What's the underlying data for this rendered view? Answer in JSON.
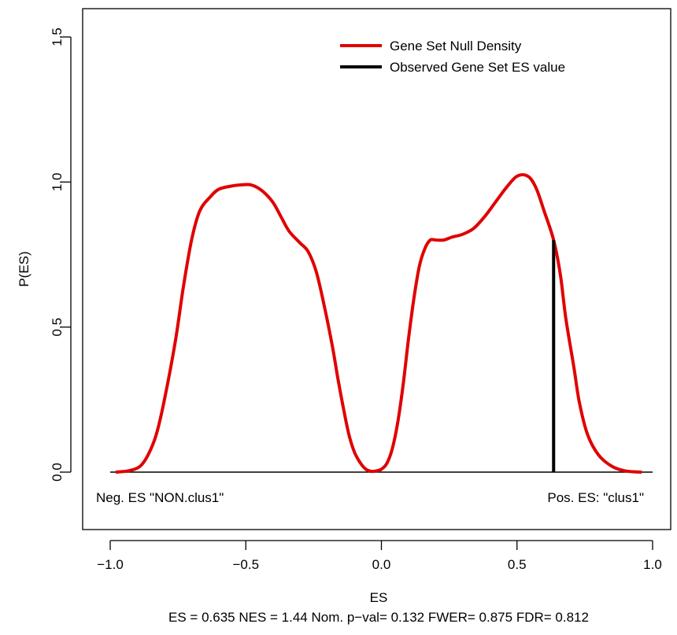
{
  "chart_data": {
    "type": "line",
    "xlabel": "ES",
    "ylabel": "P(ES)",
    "subtitle": "ES = 0.635  NES = 1.44 Nom. p−val= 0.132 FWER= 0.875 FDR= 0.812",
    "xlim": [
      -1.0,
      1.0
    ],
    "ylim": [
      -0.18,
      1.6
    ],
    "x_ticks": [
      -1.0,
      -0.5,
      0.0,
      0.5,
      1.0
    ],
    "x_tick_labels": [
      "−1.0",
      "−0.5",
      "0.0",
      "0.5",
      "1.0"
    ],
    "y_ticks": [
      0.0,
      0.5,
      1.0,
      1.5
    ],
    "y_tick_labels": [
      "0.0",
      "0.5",
      "1.0",
      "1.5"
    ],
    "grid": false,
    "legend_position": "top-right",
    "legend": [
      {
        "label": "Gene Set Null Density",
        "color": "#e00000"
      },
      {
        "label": "Observed Gene Set ES value",
        "color": "#000000"
      }
    ],
    "series": [
      {
        "name": "Gene Set Null Density",
        "color": "#e00000",
        "x": [
          -0.98,
          -0.93,
          -0.89,
          -0.86,
          -0.83,
          -0.8,
          -0.76,
          -0.73,
          -0.7,
          -0.67,
          -0.63,
          -0.6,
          -0.56,
          -0.52,
          -0.48,
          -0.44,
          -0.4,
          -0.37,
          -0.34,
          -0.3,
          -0.27,
          -0.24,
          -0.21,
          -0.18,
          -0.16,
          -0.14,
          -0.12,
          -0.1,
          -0.08,
          -0.06,
          -0.04,
          -0.02,
          0.0,
          0.02,
          0.04,
          0.06,
          0.08,
          0.1,
          0.12,
          0.14,
          0.16,
          0.18,
          0.2,
          0.23,
          0.26,
          0.3,
          0.34,
          0.38,
          0.42,
          0.46,
          0.5,
          0.54,
          0.57,
          0.6,
          0.635,
          0.66,
          0.68,
          0.71,
          0.73,
          0.76,
          0.8,
          0.85,
          0.9,
          0.96
        ],
        "y": [
          0.0,
          0.005,
          0.02,
          0.06,
          0.13,
          0.25,
          0.45,
          0.64,
          0.8,
          0.9,
          0.95,
          0.975,
          0.985,
          0.99,
          0.99,
          0.97,
          0.93,
          0.88,
          0.83,
          0.79,
          0.76,
          0.69,
          0.57,
          0.43,
          0.32,
          0.22,
          0.13,
          0.07,
          0.035,
          0.012,
          0.003,
          0.004,
          0.01,
          0.03,
          0.08,
          0.17,
          0.3,
          0.46,
          0.6,
          0.71,
          0.77,
          0.8,
          0.8,
          0.8,
          0.81,
          0.82,
          0.84,
          0.88,
          0.93,
          0.98,
          1.02,
          1.02,
          0.98,
          0.9,
          0.8,
          0.68,
          0.53,
          0.36,
          0.24,
          0.13,
          0.06,
          0.02,
          0.004,
          0.0
        ]
      },
      {
        "name": "Observed Gene Set ES value",
        "color": "#000000",
        "x": [
          0.635,
          0.635
        ],
        "y": [
          0.0,
          0.8
        ]
      }
    ],
    "baseline_y": 0.0,
    "annotations": [
      {
        "text": "Neg. ES \"NON.clus1\"",
        "position": "bottom-left"
      },
      {
        "text": "Pos. ES: \"clus1\"",
        "position": "bottom-right"
      }
    ]
  }
}
